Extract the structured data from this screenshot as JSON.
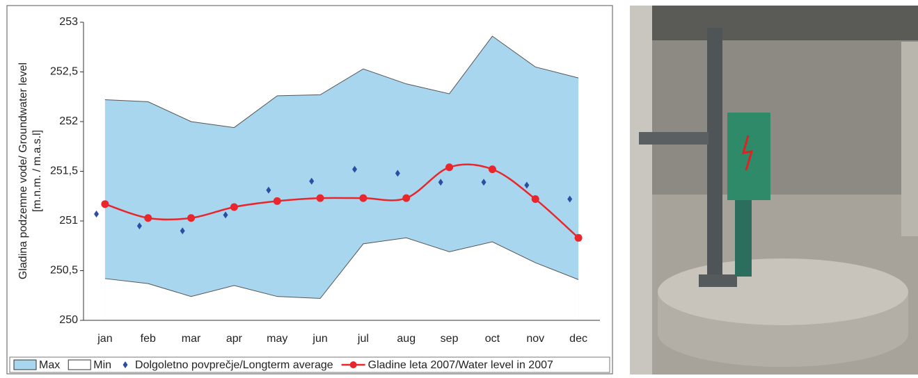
{
  "chart_data": {
    "type": "line",
    "y_label_lines": [
      "Gladina podzemne vode/ Groundwater level",
      "[m.n.m. / m.a.s.l]"
    ],
    "categories": [
      "jan",
      "feb",
      "mar",
      "apr",
      "may",
      "jun",
      "jul",
      "aug",
      "sep",
      "oct",
      "nov",
      "dec"
    ],
    "series": [
      {
        "name": "Max",
        "kind": "area",
        "color": "#a8d6ee",
        "values": [
          252.22,
          252.2,
          252.0,
          251.94,
          252.26,
          252.27,
          252.53,
          252.38,
          252.28,
          252.86,
          252.55,
          252.44
        ]
      },
      {
        "name": "Min",
        "kind": "area",
        "color": "#ffffff",
        "values": [
          250.42,
          250.37,
          250.24,
          250.35,
          250.24,
          250.22,
          250.77,
          250.83,
          250.69,
          250.79,
          250.58,
          250.41
        ]
      },
      {
        "name": "Dolgoletno povprečje/Longterm average",
        "kind": "scatter",
        "color": "#2b4ea2",
        "values": [
          251.07,
          250.95,
          250.9,
          251.06,
          251.31,
          251.4,
          251.52,
          251.48,
          251.39,
          251.39,
          251.36,
          251.22
        ]
      },
      {
        "name": "Gladine leta 2007/Water level in 2007",
        "kind": "line",
        "color": "#e8262b",
        "values": [
          251.17,
          251.03,
          251.03,
          251.14,
          251.2,
          251.23,
          251.23,
          251.23,
          251.54,
          251.52,
          251.22,
          250.83
        ]
      }
    ],
    "ylim": [
      250,
      253
    ],
    "yticks": [
      250,
      {
        "value": 250.5,
        "label": "250,5"
      },
      251,
      {
        "value": 251.5,
        "label": "251,5"
      },
      252,
      {
        "value": 252.5,
        "label": "252,5"
      },
      253
    ],
    "legend": "bottom"
  }
}
